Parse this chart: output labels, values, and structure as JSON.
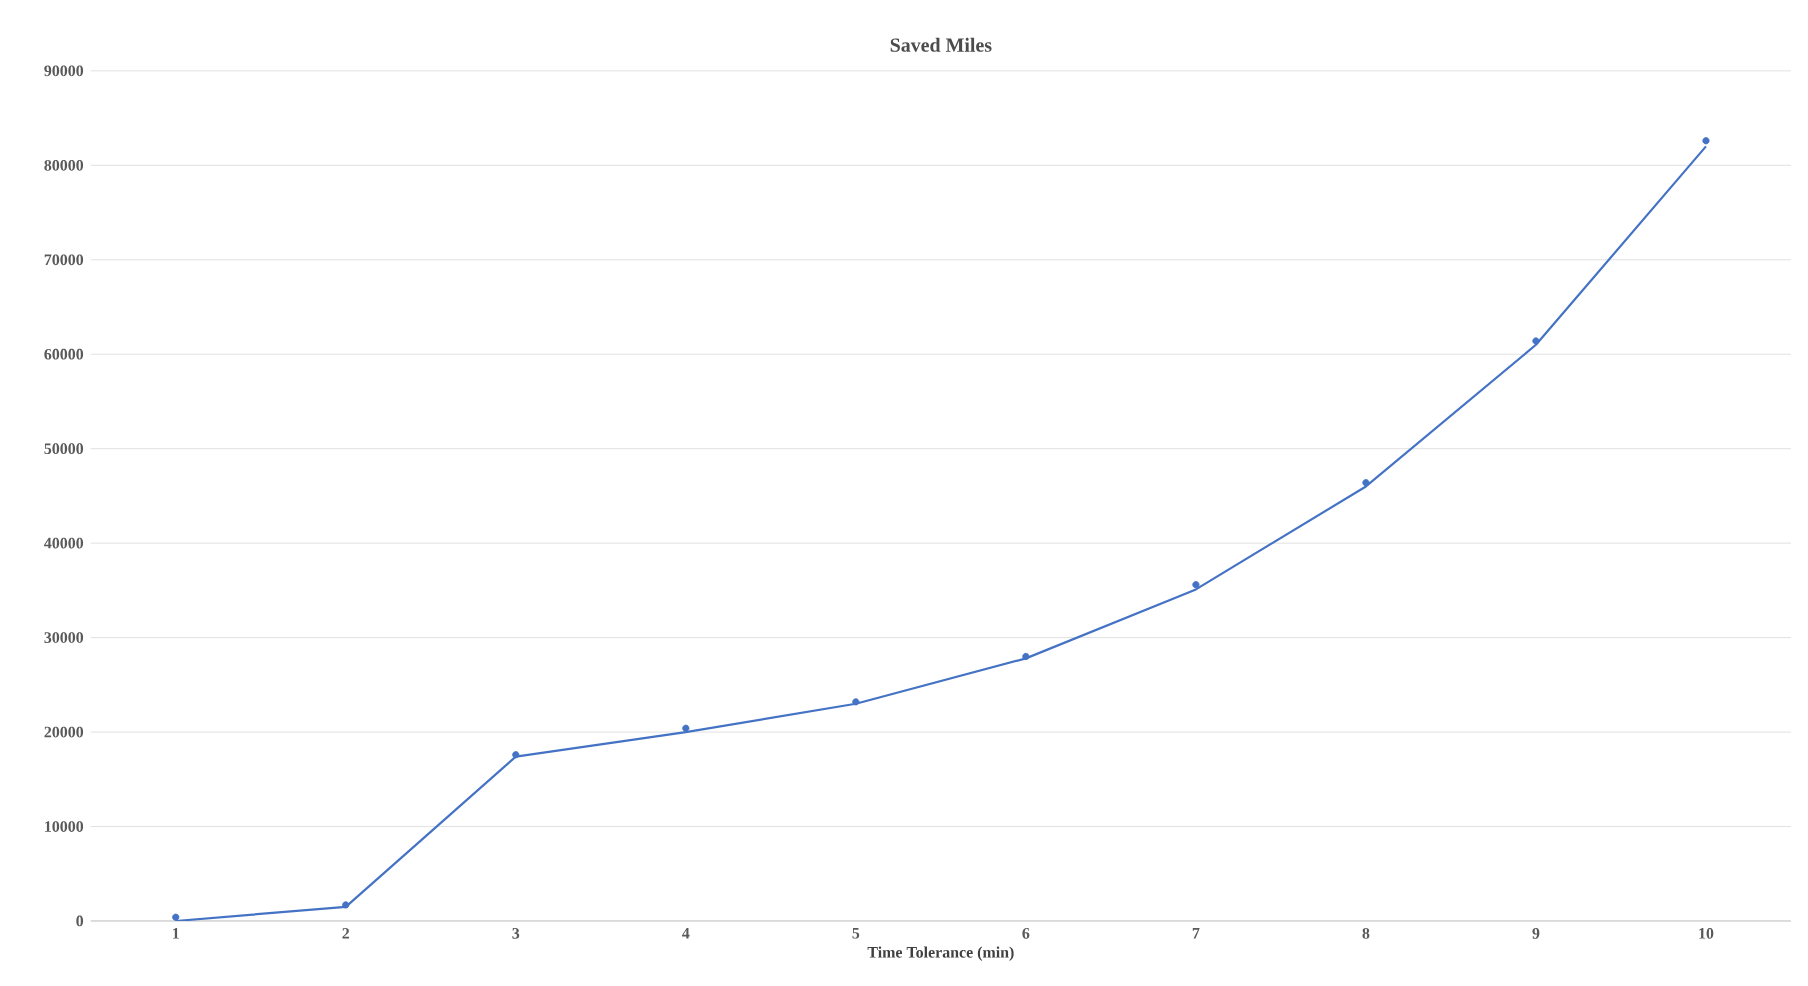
{
  "chart_data": {
    "type": "line",
    "title": "Saved Miles",
    "xlabel": "Time Tolerance (min)",
    "x": [
      1,
      2,
      3,
      4,
      5,
      6,
      7,
      8,
      9,
      10
    ],
    "series": [
      {
        "type": "scatter",
        "color": "#4472c4",
        "marker": "circle",
        "values": [
          400,
          1700,
          17600,
          20400,
          23200,
          28000,
          35600,
          46400,
          61400,
          82600
        ]
      },
      {
        "color": "#4472c4",
        "marker": "none",
        "line_style": "solid",
        "values": [
          0,
          1500,
          17400,
          20000,
          23000,
          27800,
          35100,
          46000,
          61000,
          82000
        ]
      }
    ],
    "xlim": [
      0.5,
      10.5
    ],
    "xticks": [
      1,
      2,
      3,
      4,
      5,
      6,
      7,
      8,
      9,
      10
    ],
    "ylim": [
      0,
      90000
    ],
    "yticks": [
      0,
      10000,
      20000,
      30000,
      40000,
      50000,
      60000,
      70000,
      80000,
      90000
    ],
    "grid": "y"
  }
}
